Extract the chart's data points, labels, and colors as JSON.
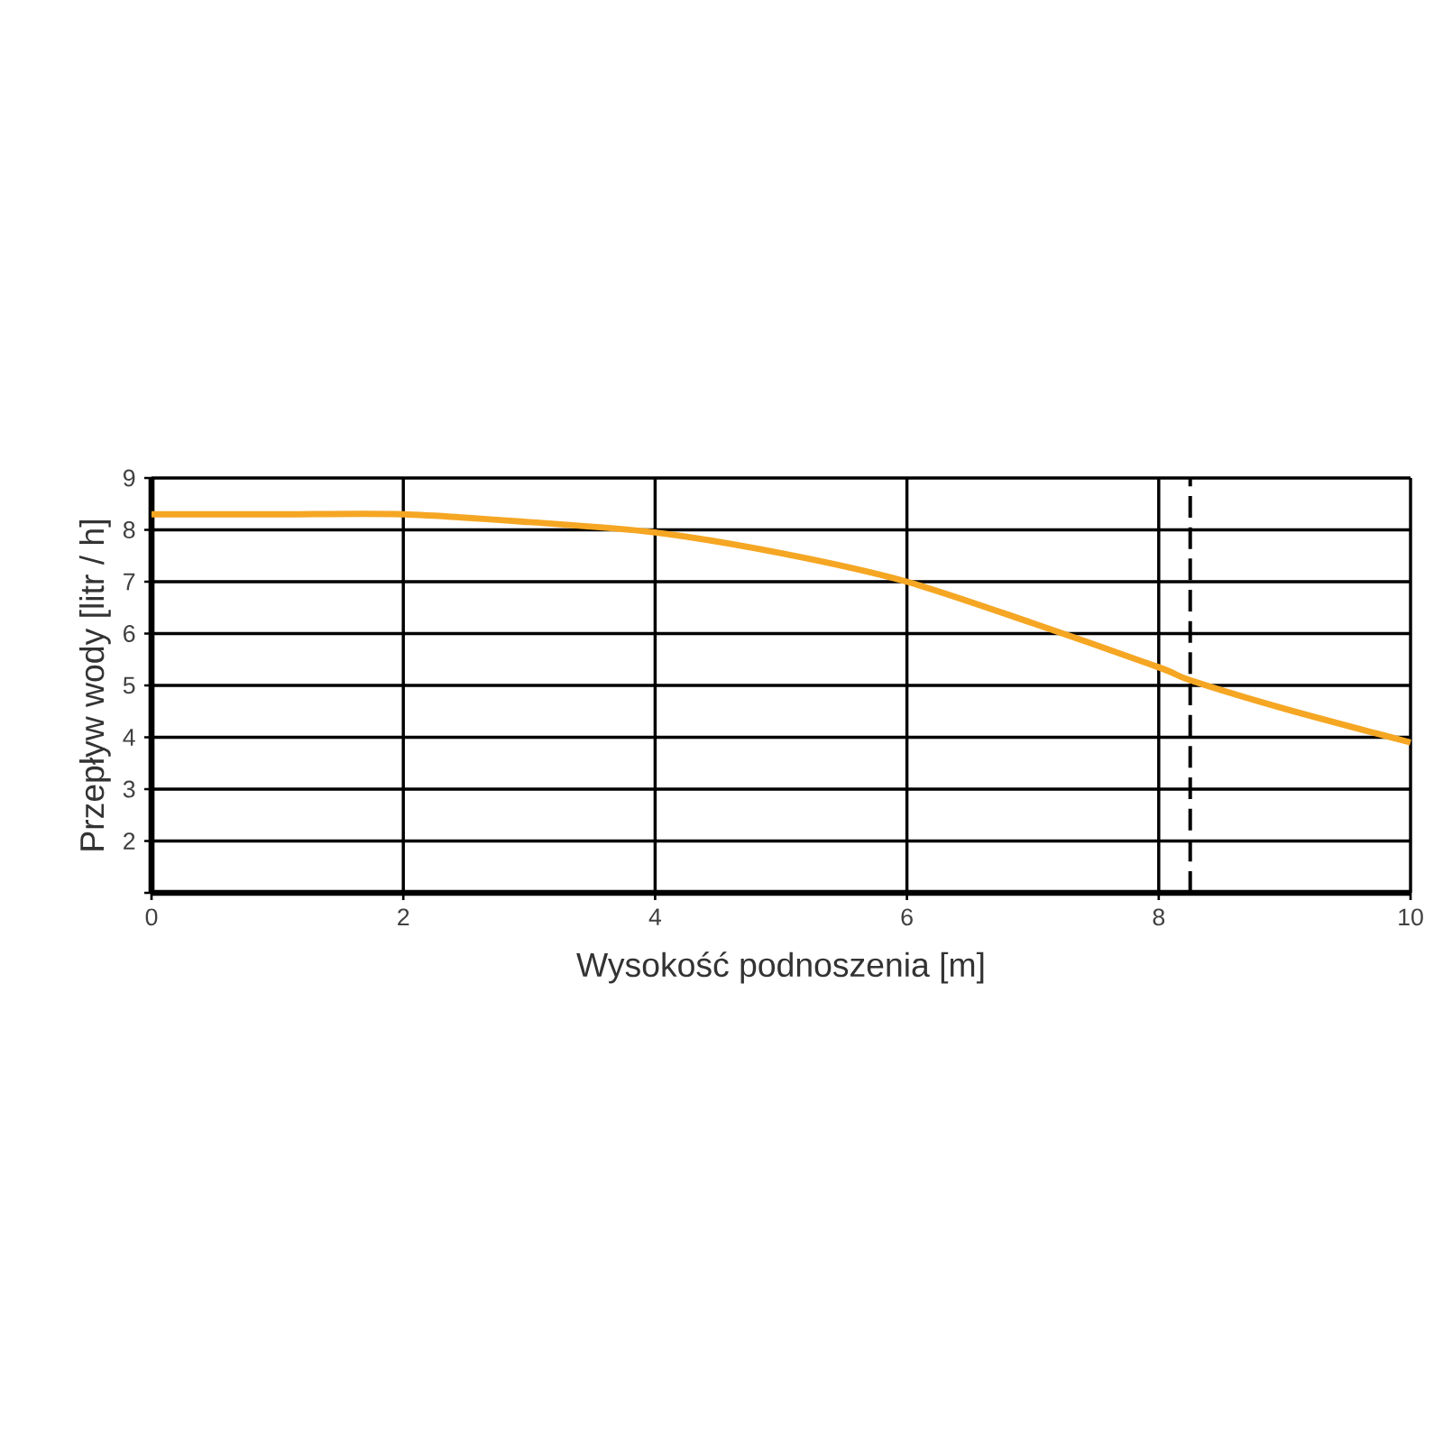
{
  "chart_data": {
    "type": "line",
    "xlabel": "Wysokość podnoszenia [m]",
    "ylabel": "Przepływ wody [litr / h]",
    "x": [
      0,
      1,
      2,
      3,
      4,
      5,
      6,
      7,
      8,
      8.25,
      9,
      10
    ],
    "series": [
      {
        "color": "#f5a623",
        "values": [
          8.3,
          8.3,
          8.3,
          8.15,
          7.95,
          7.55,
          7.0,
          6.2,
          5.35,
          5.1,
          4.55,
          3.9
        ]
      }
    ],
    "xlim": [
      0,
      10
    ],
    "ylim": [
      1,
      9
    ],
    "xticks": [
      0,
      2,
      4,
      6,
      8,
      10
    ],
    "yticks": [
      {
        "value": 1,
        "label": null
      },
      2,
      3,
      4,
      5,
      6,
      7,
      8,
      9
    ],
    "grid": true,
    "marker": "none",
    "line_style": "solid",
    "ref_lines": [
      {
        "axis": "x",
        "value": 8.25,
        "line_style": "dashed"
      }
    ]
  }
}
